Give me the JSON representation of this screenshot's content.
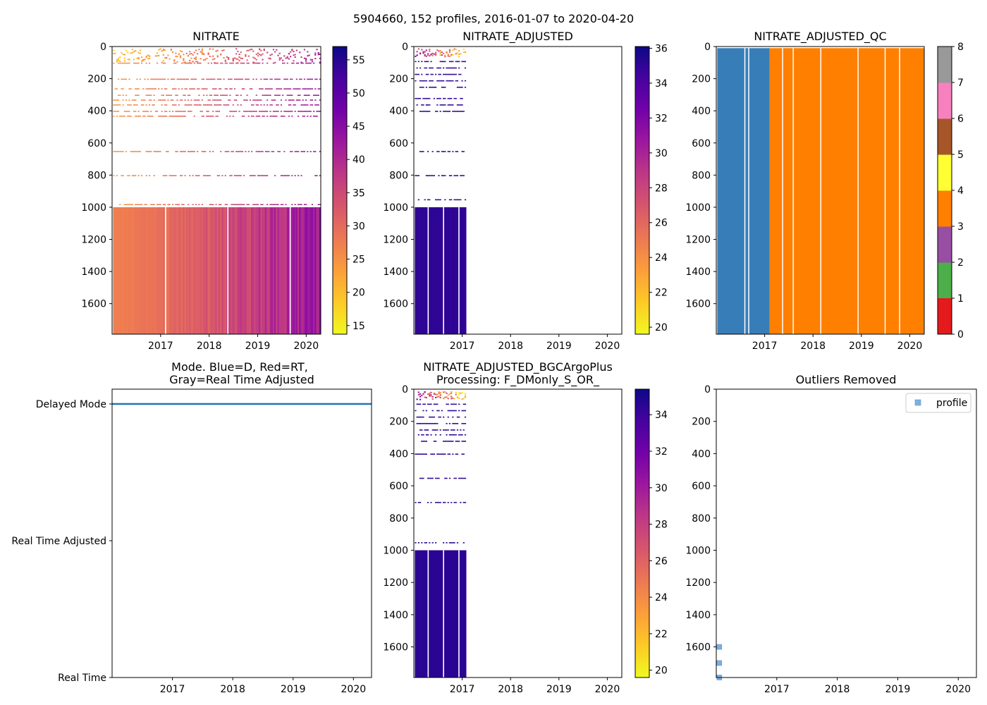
{
  "figure_title": "5904660, 152 profiles, 2016-01-07 to 2020-04-20",
  "colors": {
    "plasma": [
      "#0d0887",
      "#46039f",
      "#7201a8",
      "#9c179e",
      "#bd3786",
      "#d8576b",
      "#ed7953",
      "#fb9f3a",
      "#fdca26",
      "#f0f921"
    ],
    "qc": [
      "#e41a1c",
      "#377eb8",
      "#4daf4a",
      "#984ea3",
      "#ff7f00",
      "#ffff33",
      "#a65628",
      "#f781bf",
      "#999999"
    ],
    "mode_line": "#1f77b4",
    "outlier_marker": "#7fb0dc"
  },
  "chart_data": [
    {
      "id": "nitrate",
      "type": "heatmap",
      "title": "NITRATE",
      "xlim": [
        2016.0,
        2020.3
      ],
      "xticks": [
        2017,
        2018,
        2019,
        2020
      ],
      "ylim": [
        1790,
        0
      ],
      "yticks": [
        0,
        200,
        400,
        600,
        800,
        1000,
        1200,
        1400,
        1600
      ],
      "colorbar": {
        "cmap": "plasma",
        "range": [
          13.7,
          57
        ],
        "ticks": [
          15,
          20,
          25,
          30,
          35,
          40,
          45,
          50,
          55
        ]
      },
      "profile_span": [
        2016.02,
        2020.3
      ],
      "deep_layer": {
        "depth_range": [
          1000,
          1790
        ],
        "values_start": 27.5,
        "values_end": 43
      },
      "shallow_layer": {
        "depth_range": [
          0,
          100
        ],
        "values_start": 19,
        "values_end": 40
      },
      "sparse_depths": [
        100,
        200,
        260,
        300,
        330,
        360,
        400,
        430,
        650,
        800,
        980
      ]
    },
    {
      "id": "nitrate_adjusted",
      "type": "heatmap",
      "title": "NITRATE_ADJUSTED",
      "xlim": [
        2016.0,
        2020.3
      ],
      "xticks": [
        2017,
        2018,
        2019,
        2020
      ],
      "ylim": [
        1790,
        0
      ],
      "yticks": [
        0,
        200,
        400,
        600,
        800,
        1000,
        1200,
        1400,
        1600
      ],
      "colorbar": {
        "cmap": "plasma",
        "range": [
          19.6,
          36.1
        ],
        "ticks": [
          20,
          22,
          24,
          26,
          28,
          30,
          32,
          34,
          36
        ]
      },
      "profile_span": [
        2016.02,
        2017.08
      ],
      "deep_layer": {
        "depth_range": [
          1000,
          1790
        ],
        "value": 35
      },
      "shallow_layer": {
        "depth_range": [
          0,
          60
        ],
        "values_start": 30,
        "values_end": 22
      },
      "sparse_depths": [
        90,
        130,
        170,
        210,
        250,
        320,
        360,
        400,
        650,
        800,
        950
      ]
    },
    {
      "id": "nitrate_adjusted_qc",
      "type": "heatmap",
      "title": "NITRATE_ADJUSTED_QC",
      "xlim": [
        2016.0,
        2020.3
      ],
      "xticks": [
        2017,
        2018,
        2019,
        2020
      ],
      "ylim": [
        1790,
        0
      ],
      "yticks": [
        0,
        200,
        400,
        600,
        800,
        1000,
        1200,
        1400,
        1600
      ],
      "colorbar": {
        "cmap": "qc",
        "range": [
          0,
          8
        ],
        "ticks": [
          0,
          1,
          2,
          3,
          4,
          5,
          6,
          7,
          8
        ]
      },
      "blocks": [
        {
          "x_range": [
            2016.02,
            2017.1
          ],
          "qc": 1
        },
        {
          "x_range": [
            2017.1,
            2020.3
          ],
          "qc": 4
        }
      ],
      "gaps": [
        2016.58,
        2016.66,
        2017.36,
        2017.58,
        2018.15,
        2018.92,
        2019.48,
        2019.78
      ]
    },
    {
      "id": "mode",
      "type": "line",
      "title": "Mode. Blue=D, Red=RT,\nGray=Real Time Adjusted",
      "xlim": [
        2016.0,
        2020.3
      ],
      "xticks": [
        2017,
        2018,
        2019,
        2020
      ],
      "yticks": [
        {
          "value": 0,
          "label": "Delayed Mode"
        },
        {
          "value": 1,
          "label": "Real Time Adjusted"
        },
        {
          "value": 2,
          "label": "Real Time"
        }
      ],
      "series": [
        {
          "name": "Delayed Mode",
          "x_range": [
            2016.0,
            2020.3
          ],
          "value": 0,
          "count": 152
        }
      ]
    },
    {
      "id": "bgcargoplus",
      "type": "heatmap",
      "title": "NITRATE_ADJUSTED_BGCArgoPlus\nProcessing: F_DMonly_S_OR_",
      "xlim": [
        2016.0,
        2020.3
      ],
      "xticks": [
        2017,
        2018,
        2019,
        2020
      ],
      "ylim": [
        1790,
        0
      ],
      "yticks": [
        0,
        200,
        400,
        600,
        800,
        1000,
        1200,
        1400,
        1600
      ],
      "colorbar": {
        "cmap": "plasma",
        "range": [
          19.6,
          35.4
        ],
        "ticks": [
          20,
          22,
          24,
          26,
          28,
          30,
          32,
          34
        ]
      },
      "profile_span": [
        2016.02,
        2017.08
      ],
      "deep_layer": {
        "depth_range": [
          1000,
          1790
        ],
        "value": 34.5
      },
      "shallow_layer": {
        "depth_range": [
          0,
          60
        ],
        "values_start": 30,
        "values_end": 22
      },
      "sparse_depths": [
        90,
        130,
        170,
        210,
        250,
        280,
        320,
        400,
        550,
        700,
        950
      ]
    },
    {
      "id": "outliers",
      "type": "scatter",
      "title": "Outliers Removed",
      "xlim": [
        2016.0,
        2020.3
      ],
      "xticks": [
        2017,
        2018,
        2019,
        2020
      ],
      "ylim": [
        1790,
        0
      ],
      "yticks": [
        0,
        200,
        400,
        600,
        800,
        1000,
        1200,
        1400,
        1600
      ],
      "legend": {
        "label": "profile",
        "placement": "top-right"
      },
      "points": [
        {
          "x": 2016.05,
          "y": 1600
        },
        {
          "x": 2016.05,
          "y": 1700
        },
        {
          "x": 2016.05,
          "y": 1790
        }
      ]
    }
  ]
}
